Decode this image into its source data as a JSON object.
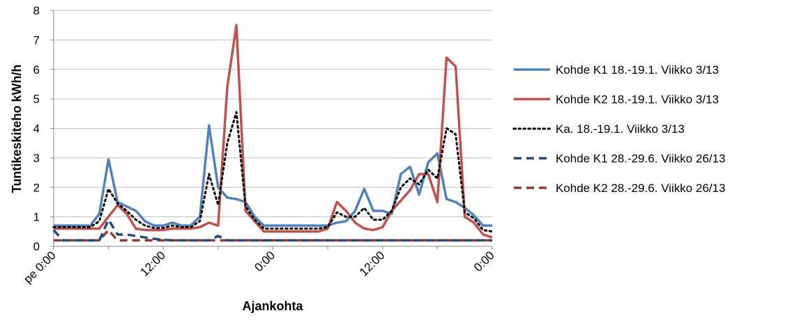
{
  "chart_data": {
    "type": "line",
    "title": "",
    "xlabel": "Ajankohta",
    "ylabel": "Tuntikeskiteho kWh/h",
    "ylim": [
      0,
      8
    ],
    "yticks": [
      0,
      1,
      2,
      3,
      4,
      5,
      6,
      7,
      8
    ],
    "xlim_hours": [
      0,
      48
    ],
    "xticks": [
      {
        "hour": 0,
        "label": "pe 0:00"
      },
      {
        "hour": 12,
        "label": "12:00"
      },
      {
        "hour": 24,
        "label": "0:00"
      },
      {
        "hour": 36,
        "label": "12:00"
      },
      {
        "hour": 48,
        "label": "0:00"
      }
    ],
    "grid": "horizontal",
    "legend_position": "right",
    "series": [
      {
        "name": "Kohde K1 18.-19.1. Viikko 3/13",
        "color": "#4F81BD",
        "dash": "solid",
        "x": [
          0,
          1,
          2,
          3,
          4,
          5,
          6,
          7,
          8,
          9,
          10,
          11,
          12,
          13,
          14,
          15,
          16,
          17,
          18,
          19,
          20,
          21,
          22,
          23,
          24,
          25,
          26,
          27,
          28,
          29,
          30,
          31,
          32,
          33,
          34,
          35,
          36,
          37,
          38,
          39,
          40,
          41,
          42,
          43,
          44,
          45,
          46,
          47,
          48
        ],
        "y": [
          0.7,
          0.7,
          0.7,
          0.7,
          0.7,
          1.1,
          2.95,
          1.5,
          1.35,
          1.2,
          0.85,
          0.7,
          0.7,
          0.8,
          0.7,
          0.7,
          1.0,
          4.1,
          2.0,
          1.65,
          1.6,
          1.5,
          1.0,
          0.7,
          0.7,
          0.7,
          0.7,
          0.7,
          0.7,
          0.7,
          0.7,
          0.8,
          0.85,
          1.2,
          1.95,
          1.2,
          1.2,
          1.1,
          2.45,
          2.7,
          1.75,
          2.85,
          3.15,
          1.6,
          1.5,
          1.3,
          1.05,
          0.7,
          0.7
        ]
      },
      {
        "name": "Kohde K2 18.-19.1. Viikko 3/13",
        "color": "#C0504D",
        "dash": "solid",
        "x": [
          0,
          1,
          2,
          3,
          4,
          5,
          6,
          7,
          8,
          9,
          10,
          11,
          12,
          13,
          14,
          15,
          16,
          17,
          18,
          19,
          20,
          21,
          22,
          23,
          24,
          25,
          26,
          27,
          28,
          29,
          30,
          31,
          32,
          33,
          34,
          35,
          36,
          37,
          38,
          39,
          40,
          41,
          42,
          43,
          44,
          45,
          46,
          47,
          48
        ],
        "y": [
          0.6,
          0.6,
          0.6,
          0.6,
          0.6,
          0.6,
          1.0,
          1.4,
          1.1,
          0.6,
          0.55,
          0.55,
          0.55,
          0.6,
          0.6,
          0.6,
          0.65,
          0.8,
          0.7,
          5.4,
          7.5,
          1.2,
          0.85,
          0.5,
          0.5,
          0.5,
          0.5,
          0.5,
          0.5,
          0.5,
          0.6,
          1.5,
          1.2,
          0.8,
          0.6,
          0.55,
          0.65,
          1.2,
          1.55,
          1.9,
          2.45,
          2.45,
          1.5,
          6.4,
          6.1,
          1.0,
          0.8,
          0.4,
          0.3
        ]
      },
      {
        "name": "Ka. 18.-19.1. Viikko 3/13",
        "color": "#000000",
        "dash": "dot",
        "x": [
          0,
          1,
          2,
          3,
          4,
          5,
          6,
          7,
          8,
          9,
          10,
          11,
          12,
          13,
          14,
          15,
          16,
          17,
          18,
          19,
          20,
          21,
          22,
          23,
          24,
          25,
          26,
          27,
          28,
          29,
          30,
          31,
          32,
          33,
          34,
          35,
          36,
          37,
          38,
          39,
          40,
          41,
          42,
          43,
          44,
          45,
          46,
          47,
          48
        ],
        "y": [
          0.65,
          0.65,
          0.65,
          0.65,
          0.65,
          0.85,
          1.95,
          1.45,
          1.2,
          0.9,
          0.7,
          0.62,
          0.62,
          0.7,
          0.65,
          0.65,
          0.85,
          2.45,
          1.4,
          3.5,
          4.55,
          1.35,
          0.9,
          0.6,
          0.6,
          0.6,
          0.6,
          0.6,
          0.6,
          0.6,
          0.65,
          1.15,
          1.0,
          1.0,
          1.3,
          0.9,
          0.9,
          1.2,
          2.0,
          2.3,
          2.1,
          2.6,
          2.3,
          4.0,
          3.8,
          1.15,
          0.95,
          0.55,
          0.5
        ]
      },
      {
        "name": "Kohde K1 28.-29.6. Viikko 26/13",
        "color": "#1F497D",
        "dash": "dash",
        "x": [
          0,
          1,
          2,
          3,
          4,
          5,
          6,
          7,
          8,
          9,
          10,
          11,
          12,
          13,
          14,
          15,
          16,
          17,
          18,
          19,
          20,
          21,
          22,
          23,
          24,
          25,
          26,
          27,
          28,
          29,
          30,
          31,
          32,
          33,
          34,
          35,
          36,
          37,
          38,
          39,
          40,
          41,
          42,
          43,
          44,
          45,
          46,
          47,
          48
        ],
        "y": [
          0.55,
          0.2,
          0.2,
          0.2,
          0.2,
          0.2,
          0.9,
          0.4,
          0.4,
          0.35,
          0.3,
          0.25,
          0.22,
          0.2,
          0.2,
          0.2,
          0.2,
          0.2,
          0.35,
          0.2,
          0.2,
          0.2,
          0.2,
          0.2,
          0.2,
          0.2,
          0.2,
          0.2,
          0.2,
          0.2,
          0.2,
          0.2,
          0.2,
          0.2,
          0.2,
          0.2,
          0.2,
          0.2,
          0.2,
          0.2,
          0.2,
          0.2,
          0.2,
          0.2,
          0.2,
          0.2,
          0.2,
          0.2,
          0.2
        ]
      },
      {
        "name": "Kohde K2 28.-29.6. Viikko 26/13",
        "color": "#943634",
        "dash": "dash",
        "x": [
          0,
          1,
          2,
          3,
          4,
          5,
          6,
          7,
          8,
          9,
          10,
          11,
          12,
          13,
          14,
          15,
          16,
          17,
          18,
          19,
          20,
          21,
          22,
          23,
          24,
          25,
          26,
          27,
          28,
          29,
          30,
          31,
          32,
          33,
          34,
          35,
          36,
          37,
          38,
          39,
          40,
          41,
          42,
          43,
          44,
          45,
          46,
          47,
          48
        ],
        "y": [
          0.2,
          0.2,
          0.2,
          0.2,
          0.2,
          0.2,
          0.55,
          0.2,
          0.2,
          0.2,
          0.2,
          0.2,
          0.2,
          0.2,
          0.2,
          0.2,
          0.2,
          0.2,
          0.2,
          0.2,
          0.2,
          0.2,
          0.2,
          0.2,
          0.2,
          0.2,
          0.2,
          0.2,
          0.2,
          0.2,
          0.2,
          0.2,
          0.2,
          0.2,
          0.2,
          0.2,
          0.2,
          0.2,
          0.2,
          0.2,
          0.2,
          0.2,
          0.2,
          0.2,
          0.2,
          0.2,
          0.2,
          0.2,
          0.2
        ]
      }
    ]
  }
}
